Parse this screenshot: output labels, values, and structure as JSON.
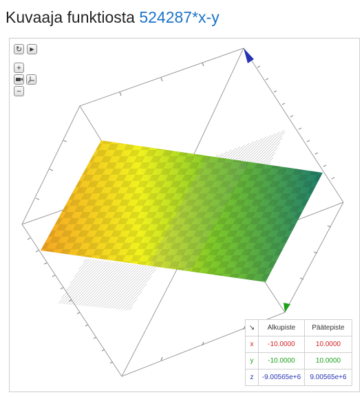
{
  "page": {
    "title_prefix": "Kuvaaja funktiosta",
    "function_text": "524287*x-y"
  },
  "toolbar": {
    "reset_symbol": "↻",
    "play_symbol": "▶",
    "zoom_in_symbol": "+",
    "zoom_out_symbol": "−"
  },
  "range_table": {
    "corner_symbol": "↘",
    "headers": [
      "Alkupiste",
      "Päätepiste"
    ],
    "rows": [
      {
        "axis": "x",
        "start": "-10.0000",
        "end": "10.0000"
      },
      {
        "axis": "y",
        "start": "-10.0000",
        "end": "10.0000"
      },
      {
        "axis": "z",
        "start": "-9.00565e+6",
        "end": "9.00565e+6"
      }
    ]
  },
  "colors": {
    "title": "#222222",
    "function": "#1a73c9",
    "x_axis": "#d22020",
    "y_axis": "#1ea01e",
    "z_axis": "#2733b5",
    "surface_start": "#f5a623",
    "surface_mid": "#f2f21e",
    "surface_end": "#1f7d6b",
    "bounding_box": "#999999"
  }
}
